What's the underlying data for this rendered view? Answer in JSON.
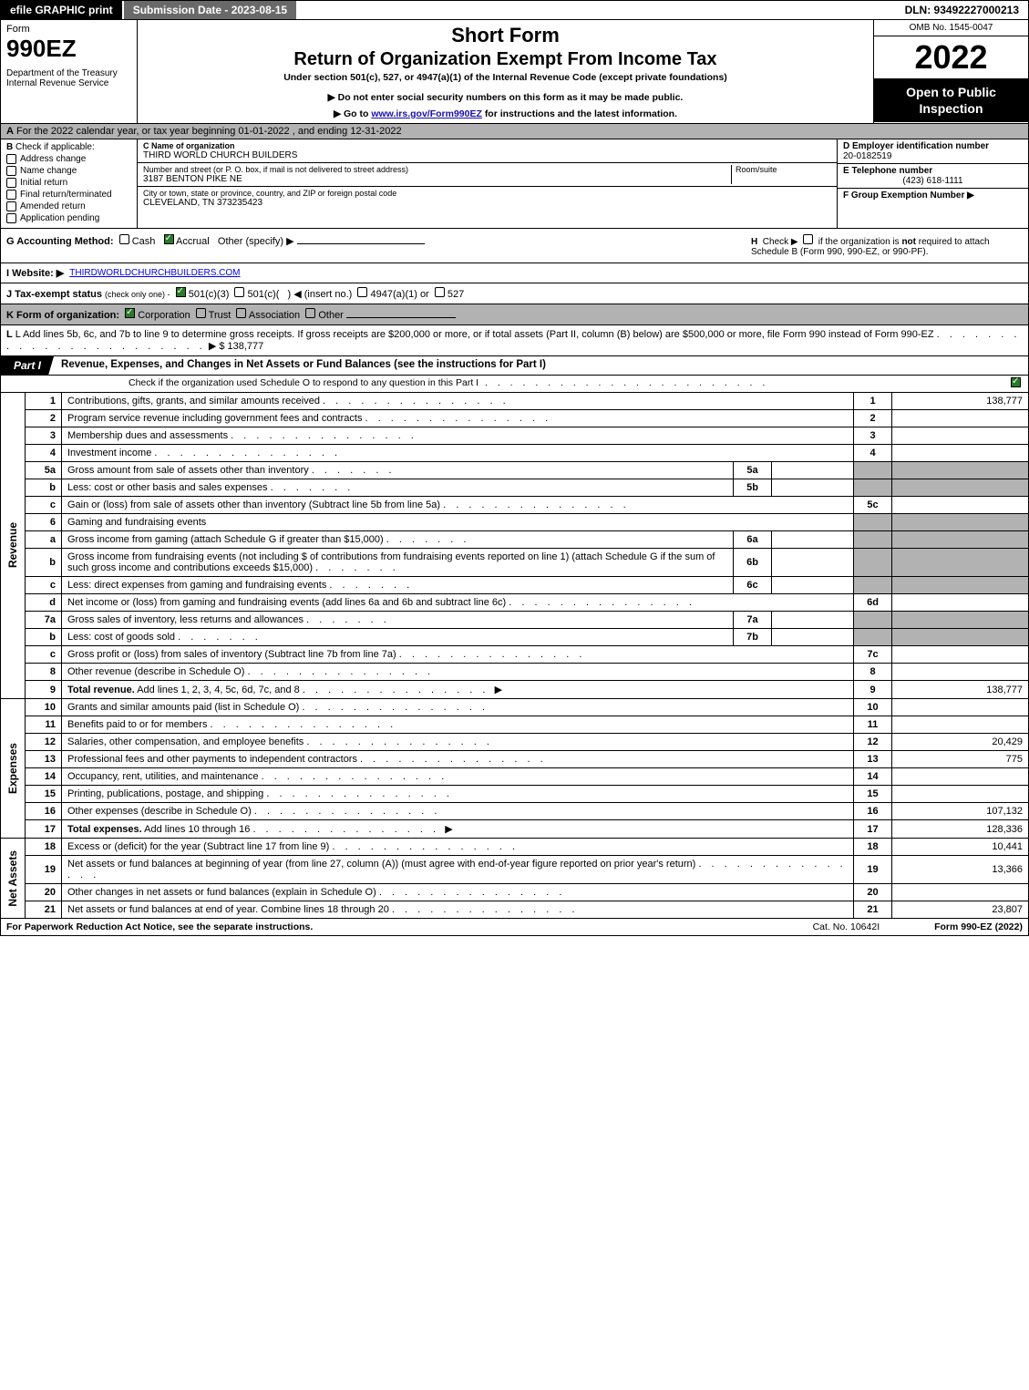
{
  "topbar": {
    "efile": "efile GRAPHIC print",
    "submission": "Submission Date - 2023-08-15",
    "dln": "DLN: 93492227000213"
  },
  "header": {
    "form_word": "Form",
    "form_num": "990EZ",
    "dept": "Department of the Treasury\nInternal Revenue Service",
    "short_form": "Short Form",
    "return_title": "Return of Organization Exempt From Income Tax",
    "subtitle": "Under section 501(c), 527, or 4947(a)(1) of the Internal Revenue Code (except private foundations)",
    "note2": "▶ Do not enter social security numbers on this form as it may be made public.",
    "note3_prefix": "▶ Go to ",
    "note3_link": "www.irs.gov/Form990EZ",
    "note3_suffix": " for instructions and the latest information.",
    "omb": "OMB No. 1545-0047",
    "year": "2022",
    "blackbox": "Open to Public Inspection"
  },
  "row_a": {
    "letter": "A",
    "text": "For the 2022 calendar year, or tax year beginning 01-01-2022 , and ending 12-31-2022"
  },
  "col_b": {
    "letter": "B",
    "label": "Check if applicable:",
    "items": [
      "Address change",
      "Name change",
      "Initial return",
      "Final return/terminated",
      "Amended return",
      "Application pending"
    ]
  },
  "col_c": {
    "name_label": "C Name of organization",
    "name_val": "THIRD WORLD CHURCH BUILDERS",
    "addr_label": "Number and street (or P. O. box, if mail is not delivered to street address)",
    "addr_val": "3187 BENTON PIKE NE",
    "room_label": "Room/suite",
    "city_label": "City or town, state or province, country, and ZIP or foreign postal code",
    "city_val": "CLEVELAND, TN  373235423"
  },
  "col_d": {
    "ein_label": "D Employer identification number",
    "ein_val": "20-0182519",
    "phone_label": "E Telephone number",
    "phone_val": "(423) 618-1111",
    "group_label": "F Group Exemption Number  ▶"
  },
  "row_g": {
    "label": "G Accounting Method:",
    "cash": "Cash",
    "accrual": "Accrual",
    "other": "Other (specify) ▶"
  },
  "row_h": {
    "text": "H  Check ▶       if the organization is not required to attach Schedule B (Form 990, 990-EZ, or 990-PF)."
  },
  "row_i": {
    "label": "I Website: ▶",
    "val": "THIRDWORLDCHURCHBUILDERS.COM"
  },
  "row_j": {
    "label": "J Tax-exempt status",
    "note": "(check only one) -",
    "opts": "501(c)(3)      501(c)(  ) ◀ (insert no.)      4947(a)(1) or      527"
  },
  "row_k": {
    "label": "K Form of organization:",
    "opts": "Corporation      Trust      Association      Other"
  },
  "row_l": {
    "text": "L Add lines 5b, 6c, and 7b to line 9 to determine gross receipts. If gross receipts are $200,000 or more, or if total assets (Part II, column (B) below) are $500,000 or more, file Form 990 instead of Form 990-EZ",
    "amt_prefix": "▶ $ ",
    "amt": "138,777"
  },
  "part1": {
    "tab": "Part I",
    "title": "Revenue, Expenses, and Changes in Net Assets or Fund Balances (see the instructions for Part I)",
    "subtitle": "Check if the organization used Schedule O to respond to any question in this Part I"
  },
  "sections": {
    "revenue": "Revenue",
    "expenses": "Expenses",
    "netassets": "Net Assets"
  },
  "lines": [
    {
      "n": "1",
      "t": "Contributions, gifts, grants, and similar amounts received",
      "ln": "1",
      "a": "138,777"
    },
    {
      "n": "2",
      "t": "Program service revenue including government fees and contracts",
      "ln": "2",
      "a": ""
    },
    {
      "n": "3",
      "t": "Membership dues and assessments",
      "ln": "3",
      "a": ""
    },
    {
      "n": "4",
      "t": "Investment income",
      "ln": "4",
      "a": ""
    },
    {
      "n": "5a",
      "t": "Gross amount from sale of assets other than inventory",
      "sub": "5a",
      "sa": ""
    },
    {
      "n": "b",
      "t": "Less: cost or other basis and sales expenses",
      "sub": "5b",
      "sa": ""
    },
    {
      "n": "c",
      "t": "Gain or (loss) from sale of assets other than inventory (Subtract line 5b from line 5a)",
      "ln": "5c",
      "a": ""
    },
    {
      "n": "6",
      "t": "Gaming and fundraising events"
    },
    {
      "n": "a",
      "t": "Gross income from gaming (attach Schedule G if greater than $15,000)",
      "sub": "6a",
      "sa": ""
    },
    {
      "n": "b",
      "t": "Gross income from fundraising events (not including $                       of contributions from fundraising events reported on line 1) (attach Schedule G if the sum of such gross income and contributions exceeds $15,000)",
      "sub": "6b",
      "sa": ""
    },
    {
      "n": "c",
      "t": "Less: direct expenses from gaming and fundraising events",
      "sub": "6c",
      "sa": ""
    },
    {
      "n": "d",
      "t": "Net income or (loss) from gaming and fundraising events (add lines 6a and 6b and subtract line 6c)",
      "ln": "6d",
      "a": ""
    },
    {
      "n": "7a",
      "t": "Gross sales of inventory, less returns and allowances",
      "sub": "7a",
      "sa": ""
    },
    {
      "n": "b",
      "t": "Less: cost of goods sold",
      "sub": "7b",
      "sa": ""
    },
    {
      "n": "c",
      "t": "Gross profit or (loss) from sales of inventory (Subtract line 7b from line 7a)",
      "ln": "7c",
      "a": ""
    },
    {
      "n": "8",
      "t": "Other revenue (describe in Schedule O)",
      "ln": "8",
      "a": ""
    },
    {
      "n": "9",
      "t": "Total revenue. Add lines 1, 2, 3, 4, 5c, 6d, 7c, and 8",
      "ln": "9",
      "a": "138,777",
      "bold": true,
      "arrow": true
    }
  ],
  "exp_lines": [
    {
      "n": "10",
      "t": "Grants and similar amounts paid (list in Schedule O)",
      "ln": "10",
      "a": ""
    },
    {
      "n": "11",
      "t": "Benefits paid to or for members",
      "ln": "11",
      "a": ""
    },
    {
      "n": "12",
      "t": "Salaries, other compensation, and employee benefits",
      "ln": "12",
      "a": "20,429"
    },
    {
      "n": "13",
      "t": "Professional fees and other payments to independent contractors",
      "ln": "13",
      "a": "775"
    },
    {
      "n": "14",
      "t": "Occupancy, rent, utilities, and maintenance",
      "ln": "14",
      "a": ""
    },
    {
      "n": "15",
      "t": "Printing, publications, postage, and shipping",
      "ln": "15",
      "a": ""
    },
    {
      "n": "16",
      "t": "Other expenses (describe in Schedule O)",
      "ln": "16",
      "a": "107,132"
    },
    {
      "n": "17",
      "t": "Total expenses. Add lines 10 through 16",
      "ln": "17",
      "a": "128,336",
      "bold": true,
      "arrow": true
    }
  ],
  "na_lines": [
    {
      "n": "18",
      "t": "Excess or (deficit) for the year (Subtract line 17 from line 9)",
      "ln": "18",
      "a": "10,441"
    },
    {
      "n": "19",
      "t": "Net assets or fund balances at beginning of year (from line 27, column (A)) (must agree with end-of-year figure reported on prior year's return)",
      "ln": "19",
      "a": "13,366"
    },
    {
      "n": "20",
      "t": "Other changes in net assets or fund balances (explain in Schedule O)",
      "ln": "20",
      "a": ""
    },
    {
      "n": "21",
      "t": "Net assets or fund balances at end of year. Combine lines 18 through 20",
      "ln": "21",
      "a": "23,807"
    }
  ],
  "footer": {
    "left": "For Paperwork Reduction Act Notice, see the separate instructions.",
    "mid": "Cat. No. 10642I",
    "right_prefix": "Form ",
    "right_bold": "990-EZ",
    "right_suffix": " (2022)"
  },
  "colors": {
    "black": "#000000",
    "darkgrey_bar": "#696969",
    "grey_bg": "#b2b2b2",
    "link": "#1a0dab",
    "check_green": "#2a7a2a"
  }
}
